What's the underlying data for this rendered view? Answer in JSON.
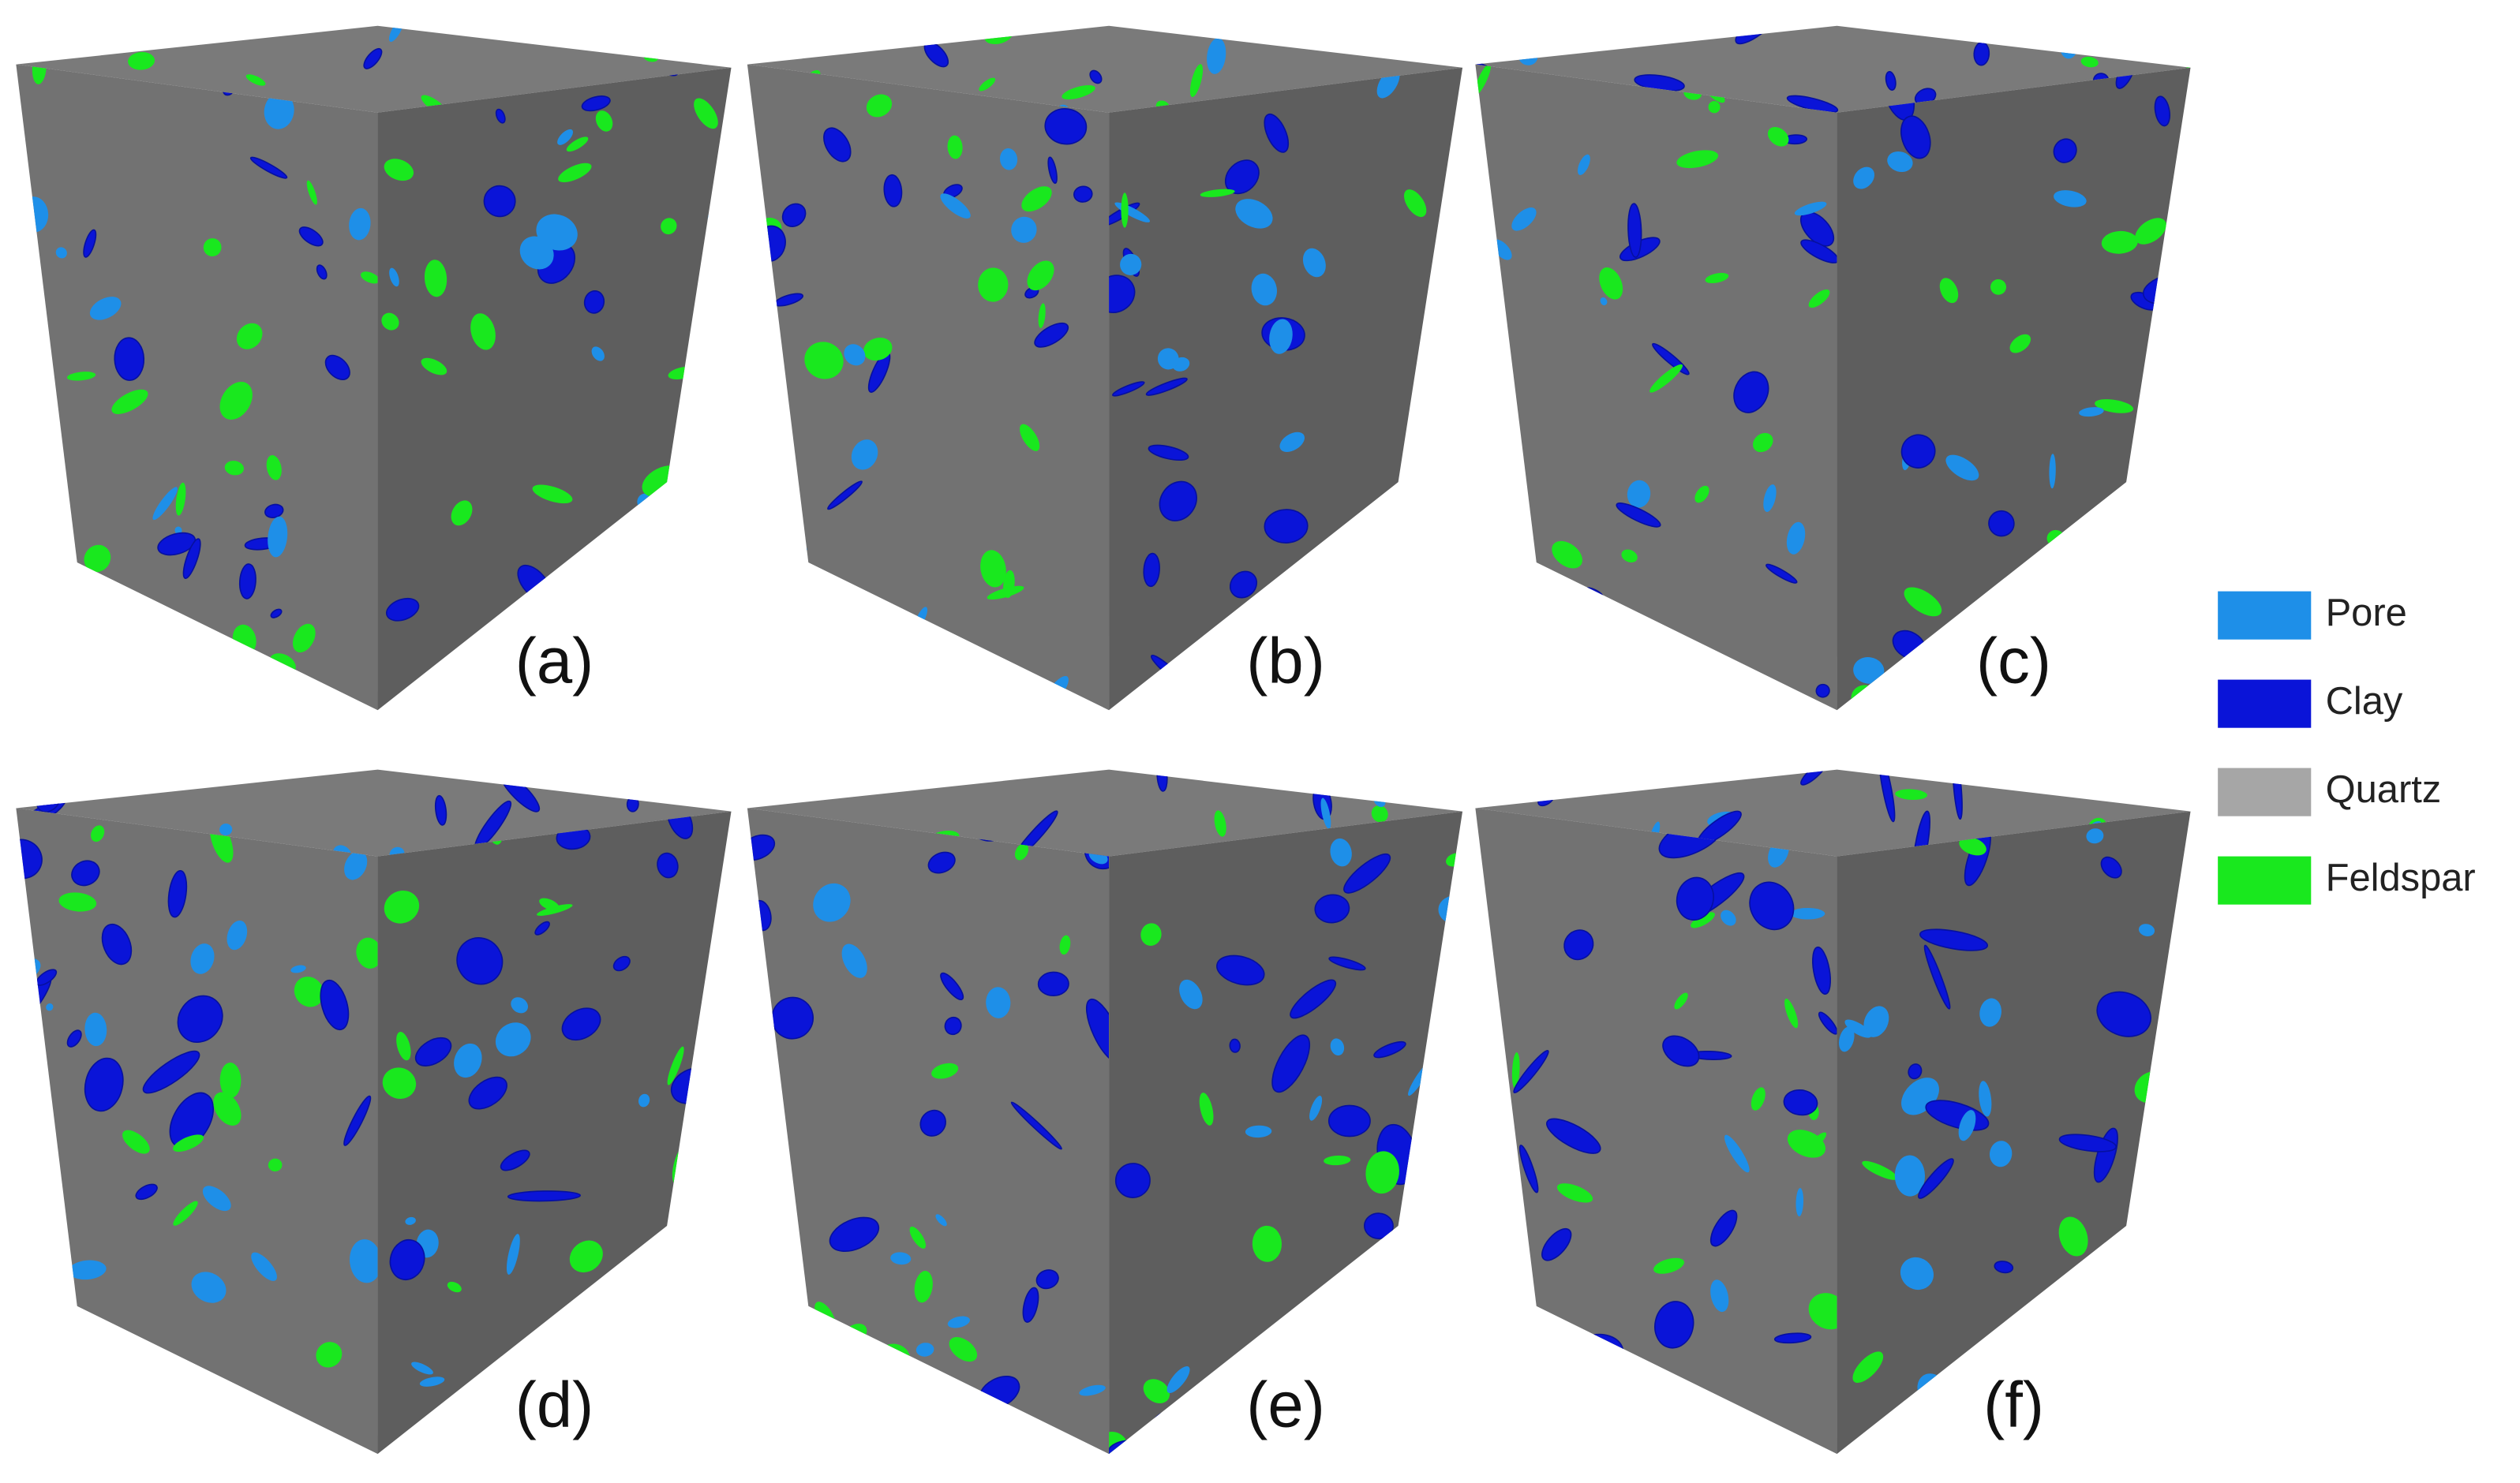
{
  "panels": [
    {
      "label": "(a)"
    },
    {
      "label": "(b)"
    },
    {
      "label": "(c)"
    },
    {
      "label": "(d)"
    },
    {
      "label": "(e)"
    },
    {
      "label": "(f)"
    }
  ],
  "legend": [
    {
      "name": "Pore",
      "color": "#1e8fe8"
    },
    {
      "name": "Clay",
      "color": "#0a14d8"
    },
    {
      "name": "Quartz",
      "color": "#a6a6a6"
    },
    {
      "name": "Feldspar",
      "color": "#19e81e"
    }
  ]
}
